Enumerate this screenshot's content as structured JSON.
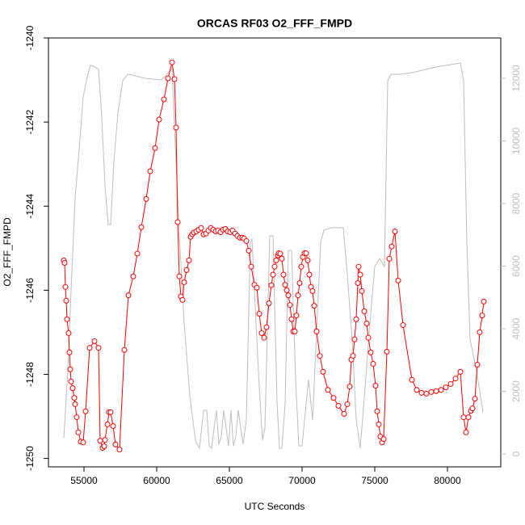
{
  "chart_data": {
    "type": "line",
    "title": "ORCAS RF03 O2_FFF_FMPD",
    "x_label": "UTC Seconds",
    "y_label": "O2_FFF_FMPD",
    "xlim": [
      52556,
      83667
    ],
    "xticks": [
      55000,
      60000,
      65000,
      70000,
      75000,
      80000
    ],
    "ylim": [
      -1250.2,
      -1240.0
    ],
    "yticks": [
      -1250,
      -1248,
      -1246,
      -1244,
      -1242,
      -1240
    ],
    "y2lim": [
      -413,
      13290
    ],
    "y2ticks": [
      0,
      2000,
      4000,
      6000,
      8000,
      10000,
      12000
    ],
    "series": [
      {
        "color": "#ff0000",
        "markers": true,
        "x": [
          53611,
          53667,
          53722,
          53778,
          53833,
          53944,
          54000,
          54056,
          54111,
          54222,
          54333,
          54389,
          54500,
          54611,
          54778,
          54944,
          55111,
          55389,
          55722,
          56000,
          56111,
          56278,
          56389,
          56444,
          56611,
          56722,
          56833,
          57000,
          57167,
          57444,
          57778,
          58056,
          58389,
          58667,
          58944,
          59278,
          59556,
          59889,
          60167,
          60500,
          60778,
          61056,
          61222,
          61333,
          61444,
          61556,
          61667,
          61778,
          61889,
          62056,
          62222,
          62333,
          62444,
          62556,
          62722,
          62889,
          63056,
          63222,
          63389,
          63556,
          63722,
          63889,
          64056,
          64222,
          64389,
          64556,
          64722,
          64889,
          65056,
          65222,
          65389,
          65556,
          65722,
          65889,
          66000,
          66167,
          66333,
          66500,
          66722,
          66889,
          67056,
          67222,
          67389,
          67556,
          67722,
          67889,
          68000,
          68111,
          68222,
          68333,
          68389,
          68500,
          68611,
          68722,
          68833,
          68944,
          69056,
          69167,
          69278,
          69389,
          69500,
          69611,
          69722,
          69833,
          69944,
          70056,
          70167,
          70278,
          70389,
          70500,
          70611,
          70722,
          70833,
          71000,
          71222,
          71444,
          71778,
          72167,
          72500,
          72889,
          73111,
          73278,
          73389,
          73500,
          73611,
          73722,
          73833,
          73889,
          74000,
          74111,
          74278,
          74444,
          74556,
          74722,
          74889,
          75056,
          75167,
          75278,
          75389,
          75500,
          75611,
          75833,
          76000,
          76167,
          76389,
          76611,
          76944,
          77556,
          77889,
          78222,
          78556,
          78889,
          79222,
          79556,
          79889,
          80222,
          80556,
          80889,
          81111,
          81278,
          81444,
          81611,
          81722,
          81889,
          82056,
          82222,
          82389,
          82500
        ],
        "values": [
          -1245.29,
          -1245.35,
          -1245.92,
          -1246.25,
          -1246.69,
          -1247.02,
          -1247.48,
          -1247.88,
          -1248.17,
          -1248.33,
          -1248.56,
          -1248.71,
          -1249.02,
          -1249.38,
          -1249.6,
          -1249.62,
          -1248.88,
          -1247.37,
          -1247.21,
          -1247.37,
          -1249.58,
          -1249.75,
          -1249.71,
          -1249.56,
          -1249.19,
          -1248.9,
          -1248.9,
          -1249.23,
          -1249.67,
          -1249.79,
          -1247.42,
          -1246.12,
          -1245.67,
          -1245.13,
          -1244.5,
          -1243.83,
          -1243.17,
          -1242.62,
          -1241.94,
          -1241.46,
          -1240.96,
          -1240.58,
          -1240.98,
          -1242.13,
          -1244.38,
          -1245.67,
          -1246.15,
          -1246.23,
          -1245.81,
          -1245.52,
          -1245.29,
          -1244.73,
          -1244.67,
          -1244.63,
          -1244.6,
          -1244.56,
          -1244.52,
          -1244.67,
          -1244.65,
          -1244.58,
          -1244.52,
          -1244.56,
          -1244.6,
          -1244.58,
          -1244.62,
          -1244.56,
          -1244.54,
          -1244.6,
          -1244.62,
          -1244.58,
          -1244.65,
          -1244.71,
          -1244.75,
          -1244.75,
          -1244.77,
          -1244.83,
          -1245.06,
          -1245.44,
          -1245.87,
          -1245.94,
          -1246.56,
          -1247.02,
          -1247.13,
          -1246.88,
          -1246.31,
          -1245.88,
          -1245.63,
          -1245.44,
          -1245.29,
          -1245.17,
          -1245.12,
          -1245.13,
          -1245.25,
          -1245.63,
          -1245.87,
          -1246.0,
          -1246.12,
          -1246.35,
          -1246.69,
          -1246.98,
          -1246.98,
          -1246.6,
          -1246.12,
          -1245.83,
          -1245.44,
          -1245.21,
          -1245.12,
          -1245.12,
          -1245.29,
          -1245.63,
          -1245.92,
          -1246.02,
          -1246.37,
          -1246.98,
          -1247.56,
          -1247.94,
          -1248.37,
          -1248.56,
          -1248.75,
          -1248.94,
          -1248.71,
          -1248.29,
          -1247.65,
          -1247.56,
          -1247.17,
          -1246.69,
          -1245.83,
          -1245.44,
          -1245.63,
          -1246.02,
          -1246.5,
          -1246.79,
          -1247.13,
          -1247.48,
          -1247.75,
          -1248.27,
          -1248.88,
          -1249.19,
          -1249.48,
          -1249.62,
          -1249.54,
          -1247.46,
          -1245.25,
          -1244.96,
          -1244.6,
          -1245.77,
          -1246.83,
          -1248.13,
          -1248.37,
          -1248.44,
          -1248.46,
          -1248.42,
          -1248.4,
          -1248.37,
          -1248.31,
          -1248.23,
          -1248.1,
          -1247.94,
          -1249.02,
          -1249.38,
          -1249.02,
          -1248.87,
          -1248.81,
          -1248.58,
          -1247.77,
          -1247.0,
          -1246.6,
          -1246.27
        ]
      },
      {
        "color": "#bebebe",
        "axis": "y2",
        "markers": false,
        "x": [
          53611,
          53889,
          54111,
          54389,
          54667,
          54944,
          55222,
          55444,
          55667,
          56000,
          56222,
          56444,
          56667,
          56833,
          57056,
          57333,
          57667,
          58000,
          58333,
          59222,
          60333,
          61056,
          61278,
          61556,
          61889,
          62278,
          62667,
          62944,
          63222,
          63444,
          63611,
          63778,
          63944,
          64111,
          64278,
          64444,
          64611,
          64778,
          64944,
          65111,
          65278,
          65444,
          65611,
          65778,
          65944,
          66167,
          66444,
          66556,
          66778,
          67056,
          67278,
          67444,
          67778,
          68000,
          68278,
          68444,
          68611,
          68833,
          69056,
          69278,
          69556,
          69778,
          70000,
          70222,
          70444,
          70722,
          71000,
          71278,
          71500,
          72000,
          72833,
          73111,
          73444,
          73722,
          74000,
          74333,
          74667,
          75000,
          75333,
          75667,
          75889,
          76111,
          76667,
          77556,
          79222,
          80222,
          80889,
          81111,
          81333,
          81556,
          82000,
          82444
        ],
        "values": [
          516,
          2632,
          5213,
          8181,
          9729,
          11406,
          12052,
          12413,
          12387,
          12284,
          10761,
          8568,
          7329,
          7329,
          9342,
          10890,
          11923,
          12129,
          12103,
          12000,
          11948,
          12310,
          9858,
          7019,
          4181,
          1858,
          439,
          181,
          1394,
          1394,
          258,
          181,
          826,
          1394,
          310,
          568,
          1394,
          826,
          258,
          1394,
          258,
          568,
          1394,
          826,
          310,
          1084,
          6761,
          6865,
          4697,
          2116,
          439,
          826,
          6968,
          6968,
          1652,
          181,
          181,
          1600,
          6503,
          6503,
          2374,
          258,
          258,
          1342,
          2374,
          1084,
          3923,
          6761,
          7148,
          7226,
          7226,
          5729,
          3665,
          1084,
          181,
          2116,
          4181,
          5987,
          6245,
          5987,
          11923,
          12129,
          12129,
          12181,
          12361,
          12439,
          12490,
          11923,
          6761,
          3665,
          2632,
          1342
        ]
      }
    ]
  }
}
